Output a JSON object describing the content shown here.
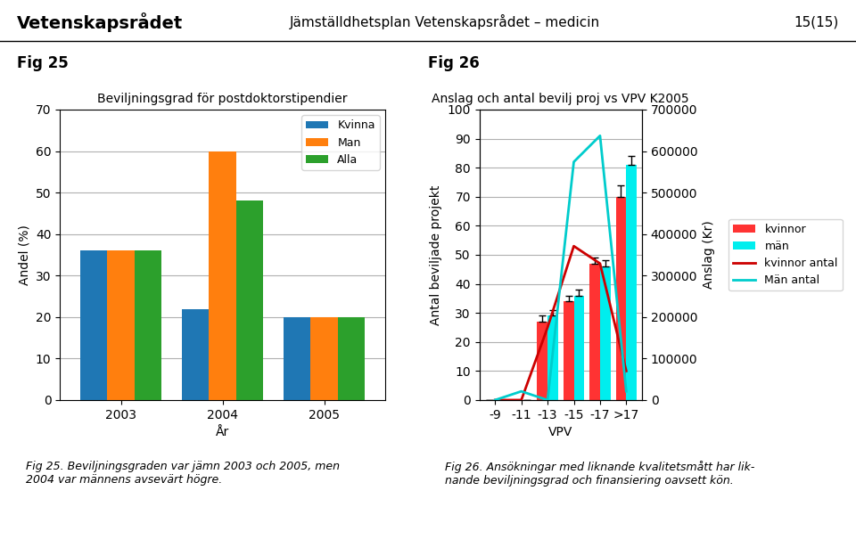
{
  "header": [
    "Vetenskapsrådet",
    "Jämställdhetsplan Vetenskapsrådet – medicin",
    "15(15)"
  ],
  "chart_data": [
    {
      "type": "bar",
      "figure_label": "Fig 25",
      "title": "Beviljningsgrad för postdoktorstipendier",
      "x_label": "År",
      "y_label": "Andel (%)",
      "categories": [
        "2003",
        "2004",
        "2005"
      ],
      "series": [
        {
          "name": "Kvinna",
          "values": [
            36,
            22,
            20
          ]
        },
        {
          "name": "Man",
          "values": [
            36,
            60,
            20
          ]
        },
        {
          "name": "Alla",
          "values": [
            36,
            48,
            20
          ]
        }
      ],
      "ylim": [
        0,
        70
      ],
      "yticks": [
        0,
        10,
        20,
        30,
        40,
        50,
        60,
        70
      ],
      "grid": true,
      "legend": "upper right",
      "caption": "Fig 25. Beviljningsgraden var jämn 2003 och 2005, men\n2004 var männens avsevärt högre."
    },
    {
      "type": "bar",
      "figure_label": "Fig 26",
      "title": "Anslag och antal bevilj proj vs VPV K2005",
      "x_label": "VPV",
      "y_label": "Antal beviljade projekt",
      "y2_label": "Anslag (Kr)",
      "categories": [
        "-9",
        "-11",
        "-13",
        "-15",
        "-17",
        ">17"
      ],
      "series": [
        {
          "name": "kvinnor",
          "type": "bar",
          "color": "#FF3333",
          "values": [
            0,
            0,
            27,
            34,
            47,
            70
          ],
          "errors_upper": [
            0,
            0,
            2,
            2,
            2,
            4
          ]
        },
        {
          "name": "män",
          "type": "bar",
          "color": "#00EEEE",
          "values": [
            0,
            0,
            29,
            36,
            46,
            81
          ],
          "errors_upper": [
            0,
            0,
            2,
            2,
            2,
            3
          ]
        },
        {
          "name": "kvinnor antal",
          "type": "line",
          "axis": "y2",
          "color": "#CC0000",
          "values": [
            0,
            0,
            175000,
            371000,
            329000,
            70000
          ]
        },
        {
          "name": "Män antal",
          "type": "line",
          "axis": "y2",
          "color": "#00CCCC",
          "values": [
            0,
            21000,
            0,
            574000,
            637000,
            21000
          ]
        }
      ],
      "ylim": [
        0,
        100
      ],
      "yticks": [
        0,
        10,
        20,
        30,
        40,
        50,
        60,
        70,
        80,
        90,
        100
      ],
      "y2lim": [
        0,
        700000
      ],
      "y2ticks": [
        0,
        100000,
        200000,
        300000,
        400000,
        500000,
        600000,
        700000
      ],
      "grid": true,
      "legend": "right",
      "caption": "Fig 26. Ansökningar med liknande kvalitetsmått har lik-\nnande beviljningsgrad och finansiering oavsett kön."
    }
  ]
}
